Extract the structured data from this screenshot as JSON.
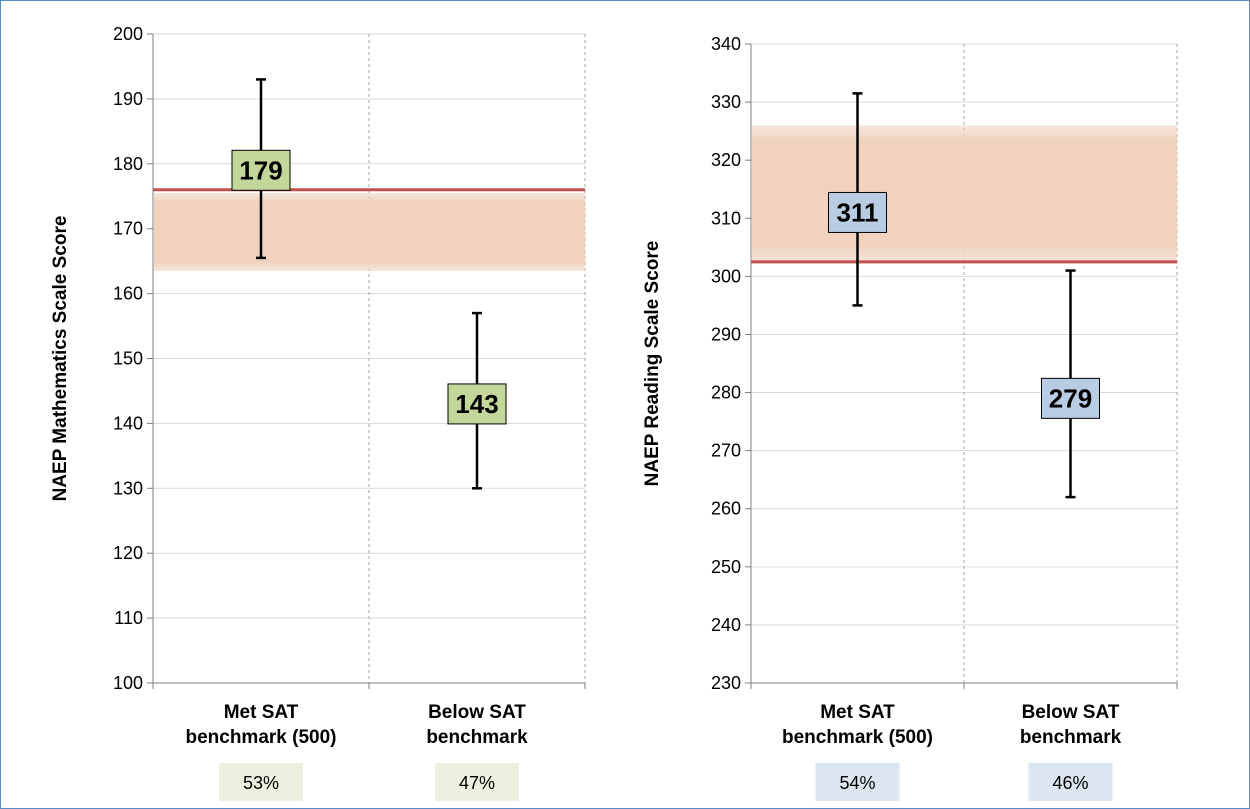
{
  "colors": {
    "band": "#f0d2bf",
    "threshold_line": "#c0504d",
    "math_accent": "#c4d79b",
    "math_pct_bg": "#ebf1de",
    "reading_accent": "#b8cce4",
    "reading_pct_bg": "#dce6f1",
    "grid": "#d9d9d9",
    "axis": "#7f7f7f"
  },
  "chart_data": [
    {
      "type": "scatter",
      "title": "",
      "ylabel": "NAEP Mathematics Scale Score",
      "ylim": [
        100,
        200
      ],
      "ytick_step": 10,
      "yticks": [
        "100",
        "110",
        "120",
        "130",
        "140",
        "150",
        "160",
        "170",
        "180",
        "190",
        "200"
      ],
      "grid": true,
      "band": [
        163.5,
        175.5
      ],
      "threshold": 176,
      "categories": [
        {
          "line1": "Met SAT",
          "line2": "benchmark (500)",
          "value": 179,
          "label": "179",
          "low": 165.5,
          "high": 193,
          "pct": "53%"
        },
        {
          "line1": "Below SAT",
          "line2": "benchmark",
          "value": 143,
          "label": "143",
          "low": 130,
          "high": 157,
          "pct": "47%"
        }
      ]
    },
    {
      "type": "scatter",
      "title": "",
      "ylabel": "NAEP Reading Scale Score",
      "ylim": [
        230,
        340
      ],
      "ytick_step": 10,
      "yticks": [
        "230",
        "240",
        "250",
        "260",
        "270",
        "280",
        "290",
        "300",
        "310",
        "320",
        "330",
        "340"
      ],
      "grid": true,
      "band": [
        302.5,
        326
      ],
      "threshold": 302.5,
      "categories": [
        {
          "line1": "Met SAT",
          "line2": "benchmark (500)",
          "value": 311,
          "label": "311",
          "low": 295,
          "high": 331.5,
          "pct": "54%"
        },
        {
          "line1": "Below SAT",
          "line2": "benchmark",
          "value": 279,
          "label": "279",
          "low": 262,
          "high": 301,
          "pct": "46%"
        }
      ]
    }
  ]
}
